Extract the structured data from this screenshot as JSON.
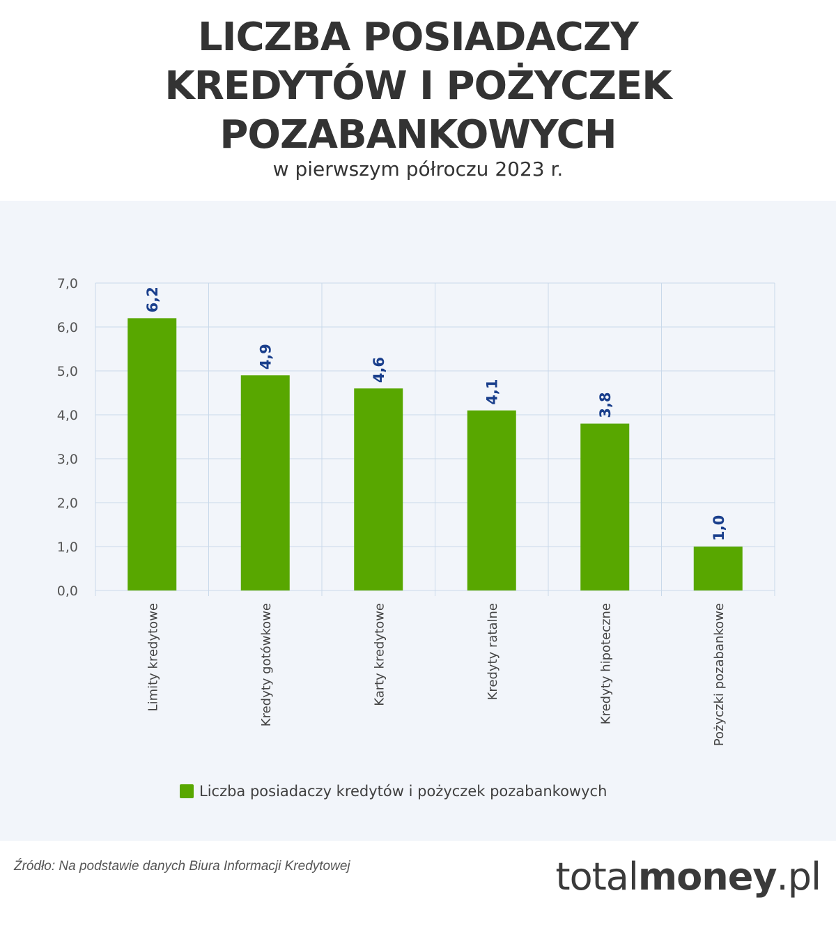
{
  "header": {
    "title_lines": [
      "LICZBA POSIADACZY",
      "KREDYTÓW I POŻYCZEK",
      "POZABANKOWYCH"
    ],
    "subtitle": "w pierwszym półroczu 2023 r."
  },
  "chart_data": {
    "type": "bar",
    "categories": [
      "Limity kredytowe",
      "Kredyty gotówkowe",
      "Karty kredytowe",
      "Kredyty ratalne",
      "Kredyty hipoteczne",
      "Pożyczki pozabankowe"
    ],
    "series": [
      {
        "name": "Liczba posiadaczy kredytów i pożyczek pozabankowych",
        "values": [
          6.2,
          4.9,
          4.6,
          4.1,
          3.8,
          1.0
        ],
        "value_labels": [
          "6,2",
          "4,9",
          "4,6",
          "4,1",
          "3,8",
          "1,0"
        ]
      }
    ],
    "ylim": [
      0,
      7
    ],
    "yticks": [
      "0,0",
      "1,0",
      "2,0",
      "3,0",
      "4,0",
      "5,0",
      "6,0",
      "7,0"
    ],
    "xlabel": "",
    "ylabel": "",
    "grid": true,
    "legend_position": "bottom",
    "bar_color": "#58a700",
    "label_color": "#1a3f8c",
    "grid_color": "#c9d9ea"
  },
  "footer": {
    "source": "Źródło: Na podstawie danych Biura Informacji Kredytowej",
    "brand_light": "total",
    "brand_bold": "money",
    "brand_tld": ".pl"
  }
}
